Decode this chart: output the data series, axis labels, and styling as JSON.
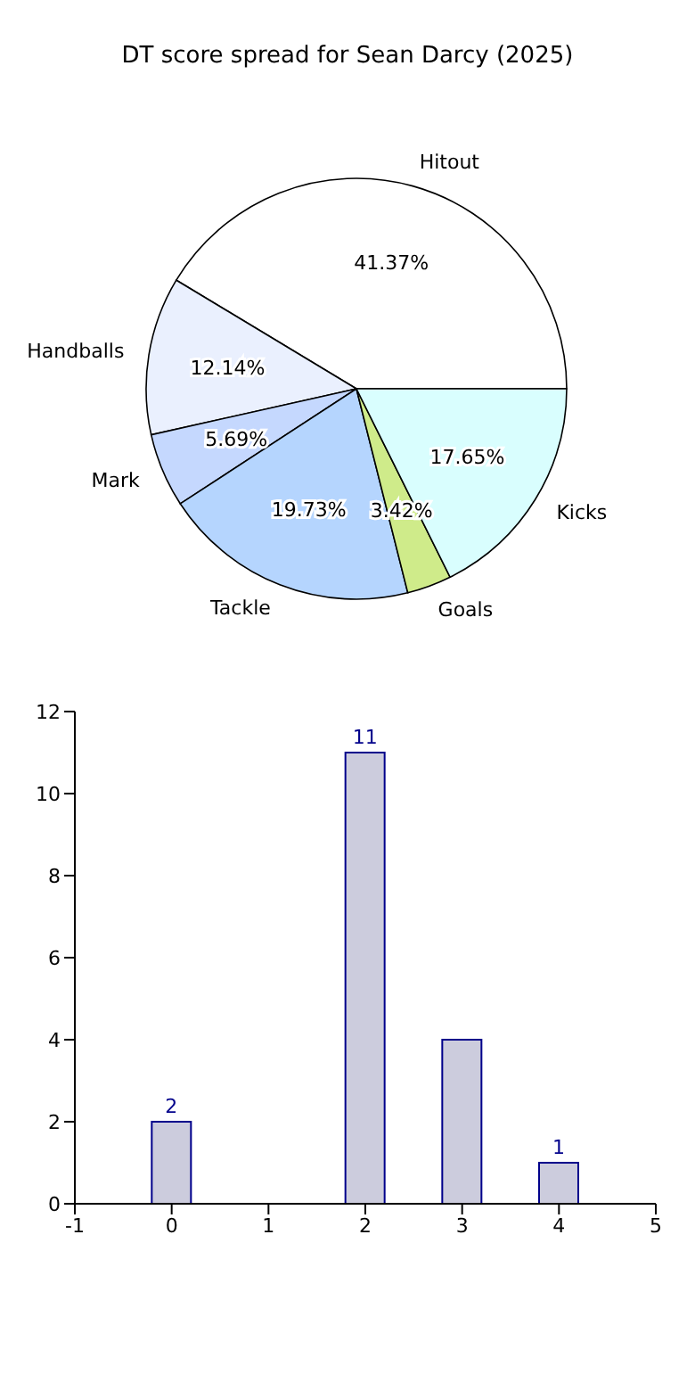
{
  "chart_data": [
    {
      "type": "pie",
      "title": "DT score spread for Sean Darcy (2025)",
      "categories": [
        "Hitout",
        "Handballs",
        "Mark",
        "Tackle",
        "Goals",
        "Kicks"
      ],
      "values": [
        41.37,
        12.14,
        5.69,
        19.73,
        3.42,
        17.65
      ],
      "colors": [
        "#ffffff",
        "#eaf0fe",
        "#c5d8fe",
        "#b5d5fe",
        "#cfeb8a",
        "#d9fefe"
      ],
      "value_labels": [
        "41.37%",
        "12.14%",
        "5.69%",
        "19.73%",
        "3.42%",
        "17.65%"
      ]
    },
    {
      "type": "bar",
      "x": [
        0,
        1,
        2,
        3,
        4
      ],
      "values": [
        2,
        null,
        11,
        4,
        1
      ],
      "color": "#ccccdd",
      "value_labels": [
        "2",
        null,
        "11",
        null,
        "1"
      ],
      "xlim": [
        -1,
        5
      ],
      "xticks": [
        -1,
        0,
        1,
        2,
        3,
        4,
        5
      ],
      "ylim": [
        0,
        12
      ],
      "yticks": [
        0,
        2,
        4,
        6,
        8,
        10,
        12
      ],
      "grid": false
    }
  ]
}
